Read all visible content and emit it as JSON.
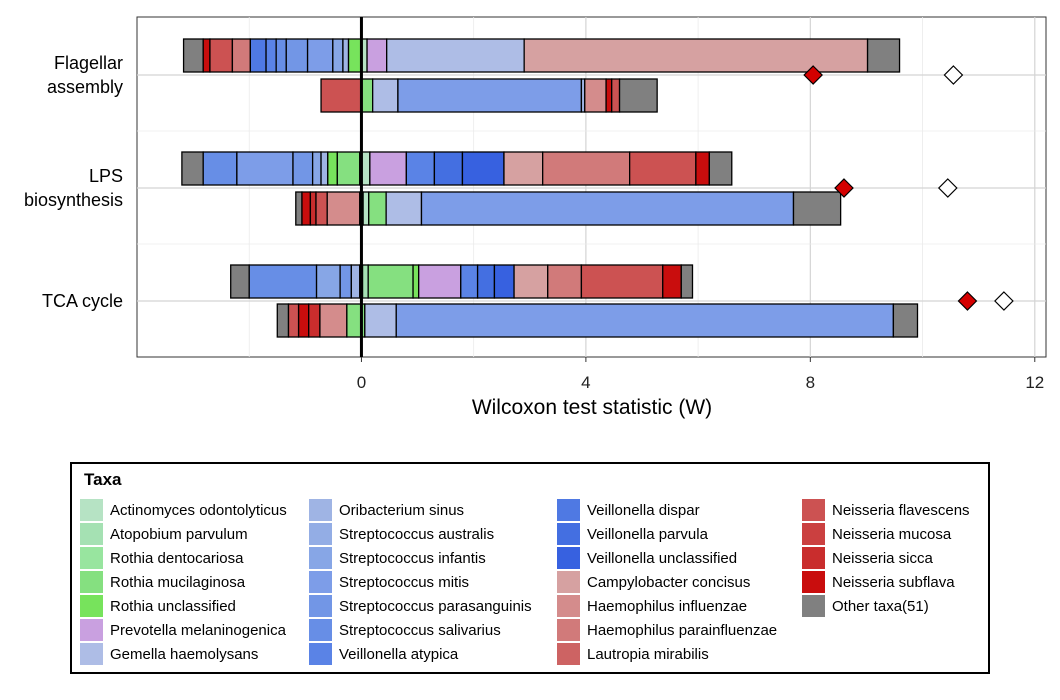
{
  "chart_data": {
    "type": "bar",
    "orientation": "horizontal",
    "stacked": true,
    "xlabel": "Wilcoxon test statistic (W)",
    "xlim": [
      -4,
      12.2
    ],
    "xticks": [
      0,
      4,
      8,
      12
    ],
    "grid": true,
    "categories": [
      "Flagellar\nassembly",
      "LPS\nbiosynthesis",
      "TCA cycle"
    ],
    "colors": {
      "Actinomyces odontolyticus": "#b6e3c4",
      "Atopobium parvulum": "#a5e1b3",
      "Rothia dentocariosa": "#98e59f",
      "Rothia mucilaginosa": "#85e080",
      "Rothia unclassified": "#77e35c",
      "Prevotella melaninogenica": "#c9a0e0",
      "Gemella haemolysans": "#aebde6",
      "Oribacterium sinus": "#9fb4e4",
      "Streptococcus australis": "#93ade5",
      "Streptococcus infantis": "#87a6e6",
      "Streptococcus mitis": "#7d9de8",
      "Streptococcus parasanguinis": "#7296e6",
      "Streptococcus salivarius": "#678ee6",
      "Veillonella atypica": "#5a83e6",
      "Veillonella dispar": "#4f79e3",
      "Veillonella parvula": "#446fe1",
      "Veillonella unclassified": "#3761e0",
      "Campylobacter concisus": "#d6a1a1",
      "Haemophilus influenzae": "#d48c8c",
      "Haemophilus parainfluenzae": "#d17a7a",
      "Lautropia mirabilis": "#cd6363",
      "Neisseria flavescens": "#cc5252",
      "Neisseria mucosa": "#cb4040",
      "Neisseria sicca": "#c92d2d",
      "Neisseria subflava": "#c90d0d",
      "Other taxa(51)": "#808080"
    },
    "bars": [
      {
        "group": 0,
        "row": 0,
        "start": -3.17,
        "segments": [
          [
            "Other taxa(51)",
            0.35
          ],
          [
            "Neisseria subflava",
            0.12
          ],
          [
            "Neisseria flavescens",
            0.4
          ],
          [
            "Haemophilus parainfluenzae",
            0.32
          ],
          [
            "Veillonella dispar",
            0.28
          ],
          [
            "Veillonella atypica",
            0.18
          ],
          [
            "Streptococcus salivarius",
            0.18
          ],
          [
            "Streptococcus parasanguinis",
            0.38
          ],
          [
            "Streptococcus mitis",
            0.45
          ],
          [
            "Streptococcus infantis",
            0.18
          ],
          [
            "Oribacterium sinus",
            0.1
          ],
          [
            "Rothia unclassified",
            0.22
          ],
          [
            "Actinomyces odontolyticus",
            0.11
          ],
          [
            "Prevotella melaninogenica",
            0.35
          ],
          [
            "Gemella haemolysans",
            2.45
          ],
          [
            "Campylobacter concisus",
            6.12
          ],
          [
            "Other taxa(51)",
            0.57
          ]
        ]
      },
      {
        "group": 0,
        "row": 1,
        "start": -0.72,
        "segments": [
          [
            "Neisseria flavescens",
            0.72
          ],
          [
            "Rothia mucilaginosa",
            0.2
          ],
          [
            "Gemella haemolysans",
            0.45
          ],
          [
            "Streptococcus mitis",
            3.27
          ],
          [
            "Oribacterium sinus",
            0.06
          ],
          [
            "Haemophilus influenzae",
            0.38
          ],
          [
            "Neisseria subflava",
            0.1
          ],
          [
            "Neisseria flavescens",
            0.14
          ],
          [
            "Other taxa(51)",
            0.67
          ]
        ]
      },
      {
        "group": 1,
        "row": 0,
        "start": -3.2,
        "segments": [
          [
            "Other taxa(51)",
            0.38
          ],
          [
            "Streptococcus salivarius",
            0.6
          ],
          [
            "Streptococcus mitis",
            1.0
          ],
          [
            "Streptococcus parasanguinis",
            0.35
          ],
          [
            "Streptococcus infantis",
            0.15
          ],
          [
            "Oribacterium sinus",
            0.12
          ],
          [
            "Rothia unclassified",
            0.17
          ],
          [
            "Rothia mucilaginosa",
            0.4
          ],
          [
            "Actinomyces odontolyticus",
            0.18
          ],
          [
            "Prevotella melaninogenica",
            0.65
          ],
          [
            "Veillonella atypica",
            0.5
          ],
          [
            "Veillonella parvula",
            0.5
          ],
          [
            "Veillonella unclassified",
            0.74
          ],
          [
            "Campylobacter concisus",
            0.69
          ],
          [
            "Haemophilus parainfluenzae",
            1.55
          ],
          [
            "Neisseria flavescens",
            1.18
          ],
          [
            "Neisseria subflava",
            0.24
          ],
          [
            "Other taxa(51)",
            0.4
          ]
        ]
      },
      {
        "group": 1,
        "row": 1,
        "start": -1.17,
        "segments": [
          [
            "Other taxa(51)",
            0.11
          ],
          [
            "Neisseria subflava",
            0.15
          ],
          [
            "Neisseria sicca",
            0.1
          ],
          [
            "Neisseria flavescens",
            0.2
          ],
          [
            "Haemophilus influenzae",
            0.58
          ],
          [
            "Veillonella dispar",
            0.06
          ],
          [
            "Actinomyces odontolyticus",
            0.1
          ],
          [
            "Rothia mucilaginosa",
            0.31
          ],
          [
            "Gemella haemolysans",
            0.63
          ],
          [
            "Streptococcus mitis",
            6.63
          ],
          [
            "Other taxa(51)",
            0.84
          ]
        ]
      },
      {
        "group": 2,
        "row": 0,
        "start": -2.33,
        "segments": [
          [
            "Other taxa(51)",
            0.33
          ],
          [
            "Streptococcus salivarius",
            1.2
          ],
          [
            "Streptococcus infantis",
            0.42
          ],
          [
            "Streptococcus parasanguinis",
            0.2
          ],
          [
            "Oribacterium sinus",
            0.15
          ],
          [
            "Streptococcus mitis",
            0.05
          ],
          [
            "Atopobium parvulum",
            0.1
          ],
          [
            "Rothia mucilaginosa",
            0.8
          ],
          [
            "Rothia unclassified",
            0.1
          ],
          [
            "Prevotella melaninogenica",
            0.75
          ],
          [
            "Veillonella atypica",
            0.3
          ],
          [
            "Veillonella parvula",
            0.3
          ],
          [
            "Veillonella unclassified",
            0.35
          ],
          [
            "Campylobacter concisus",
            0.6
          ],
          [
            "Haemophilus parainfluenzae",
            0.6
          ],
          [
            "Neisseria flavescens",
            1.45
          ],
          [
            "Neisseria subflava",
            0.33
          ],
          [
            "Other taxa(51)",
            0.2
          ]
        ]
      },
      {
        "group": 2,
        "row": 1,
        "start": -1.5,
        "segments": [
          [
            "Other taxa(51)",
            0.2
          ],
          [
            "Neisseria flavescens",
            0.18
          ],
          [
            "Neisseria subflava",
            0.18
          ],
          [
            "Neisseria sicca",
            0.2
          ],
          [
            "Haemophilus influenzae",
            0.48
          ],
          [
            "Rothia mucilaginosa",
            0.32
          ],
          [
            "Gemella haemolysans",
            0.56
          ],
          [
            "Streptococcus mitis",
            8.86
          ],
          [
            "Other taxa(51)",
            0.43
          ]
        ]
      }
    ],
    "markers": [
      {
        "group": 0,
        "filled": 8.05,
        "open": 10.55
      },
      {
        "group": 1,
        "filled": 8.6,
        "open": 10.45
      },
      {
        "group": 2,
        "filled": 10.8,
        "open": 11.45
      }
    ]
  },
  "legend": {
    "title": "Taxa",
    "columns": [
      [
        "Actinomyces odontolyticus",
        "Atopobium parvulum",
        "Rothia dentocariosa",
        "Rothia mucilaginosa",
        "Rothia unclassified",
        "Prevotella melaninogenica",
        "Gemella haemolysans"
      ],
      [
        "Oribacterium sinus",
        "Streptococcus australis",
        "Streptococcus infantis",
        "Streptococcus mitis",
        "Streptococcus parasanguinis",
        "Streptococcus salivarius",
        "Veillonella atypica"
      ],
      [
        "Veillonella dispar",
        "Veillonella parvula",
        "Veillonella unclassified",
        "Campylobacter concisus",
        "Haemophilus influenzae",
        "Haemophilus parainfluenzae",
        "Lautropia mirabilis"
      ],
      [
        "Neisseria flavescens",
        "Neisseria mucosa",
        "Neisseria sicca",
        "Neisseria subflava",
        "Other taxa(51)"
      ]
    ]
  }
}
